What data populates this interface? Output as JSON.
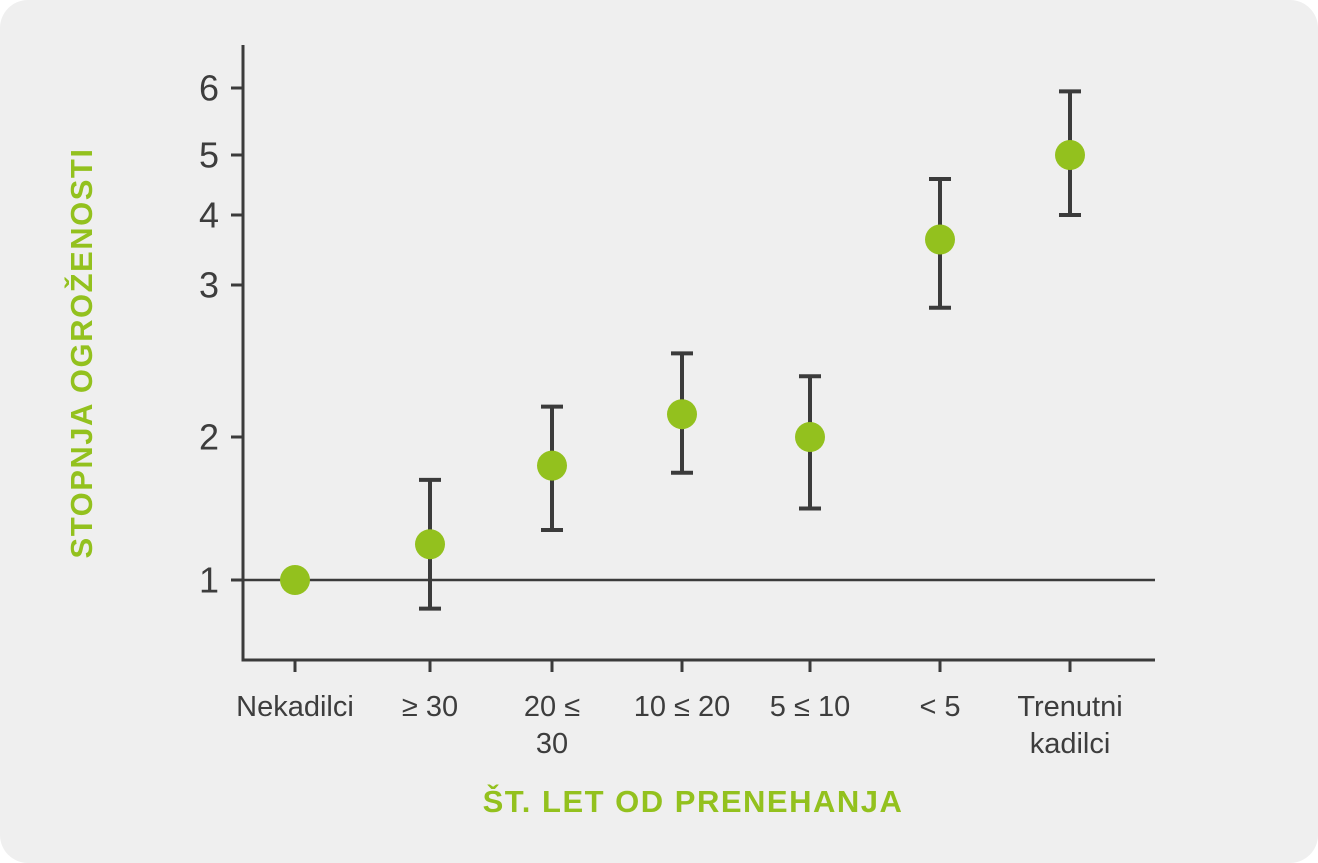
{
  "card": {
    "background_color": "#efefef"
  },
  "chart_data": {
    "type": "scatter",
    "subtype": "point-estimates-with-error-bars",
    "title": "",
    "ylabel": "STOPNJA OGROŽENOSTI",
    "xlabel": "ŠT. LET OD PRENEHANJA",
    "y_ticks": [
      1,
      2,
      3,
      4,
      5,
      6
    ],
    "y_scale": "custom-nonlinear",
    "ylim": [
      0.7,
      6.3
    ],
    "grid": "off",
    "legend": "none",
    "reference_line_y": 1,
    "accent_color": "#93c11e",
    "ink_color": "#3b3b3b",
    "categories": [
      "Nekadilci",
      "≥ 30",
      "20 ≤ 30",
      "10 ≤ 20",
      "5 ≤ 10",
      "< 5",
      "Trenutni kadilci"
    ],
    "points": [
      {
        "category": "Nekadilci",
        "label_lines": [
          "Nekadilci"
        ],
        "value": 1.0,
        "ci_low": null,
        "ci_high": null
      },
      {
        "category": "≥ 30",
        "label_lines": [
          "≥ 30"
        ],
        "value": 1.25,
        "ci_low": 0.8,
        "ci_high": 1.7
      },
      {
        "category": "20 ≤ 30",
        "label_lines": [
          "20 ≤",
          "30"
        ],
        "value": 1.8,
        "ci_low": 1.35,
        "ci_high": 2.2
      },
      {
        "category": "10 ≤ 20",
        "label_lines": [
          "10 ≤ 20"
        ],
        "value": 2.15,
        "ci_low": 1.75,
        "ci_high": 2.55
      },
      {
        "category": "5 ≤ 10",
        "label_lines": [
          "5 ≤ 10"
        ],
        "value": 2.0,
        "ci_low": 1.5,
        "ci_high": 2.4
      },
      {
        "category": "< 5",
        "label_lines": [
          "< 5"
        ],
        "value": 3.65,
        "ci_low": 2.85,
        "ci_high": 4.6
      },
      {
        "category": "Trenutni kadilci",
        "label_lines": [
          "Trenutni",
          "kadilci"
        ],
        "value": 5.0,
        "ci_low": 4.0,
        "ci_high": 5.95
      }
    ]
  }
}
